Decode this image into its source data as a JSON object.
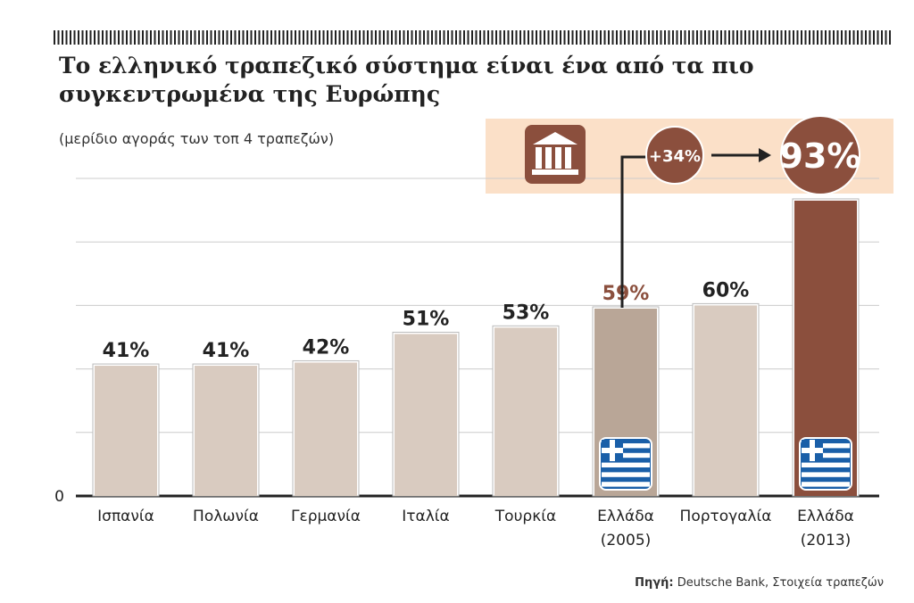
{
  "title": "Το ελληνικό τραπεζικό σύστημα είναι ένα από τα πιο συγκεντρωμένα της Ευρώπης",
  "subtitle": "(μερίδιο αγοράς των τοπ 4 τραπεζών)",
  "source_label": "Πηγή:",
  "source_text": "Deutsche Bank, Στοιχεία τραπεζών",
  "colors": {
    "bar": "#d9cbc0",
    "greece2005": "#b9a697",
    "greece2013": "#8b4f3d",
    "band": "#fbe0c8",
    "circle": "#8b4f3d"
  },
  "icons": [
    "bank-icon",
    "greek-flag-icon",
    "arrow-right-icon"
  ],
  "chart_data": {
    "type": "bar",
    "title": "Το ελληνικό τραπεζικό σύστημα είναι ένα από τα πιο συγκεντρωμένα της Ευρώπης",
    "categories": [
      "Ισπανία",
      "Πολωνία",
      "Γερμανία",
      "Ιταλία",
      "Τουρκία",
      "Ελλάδα (2005)",
      "Πορτογαλία",
      "Ελλάδα (2013)"
    ],
    "values": [
      41,
      41,
      42,
      51,
      53,
      59,
      60,
      93
    ],
    "data_labels": [
      "41%",
      "41%",
      "42%",
      "51%",
      "53%",
      "59%",
      "60%",
      "93%"
    ],
    "y_tick_labels": [
      "0"
    ],
    "ylim": [
      0,
      100
    ],
    "grid": true,
    "annotations": {
      "change": "+34%",
      "final": "93%"
    }
  }
}
